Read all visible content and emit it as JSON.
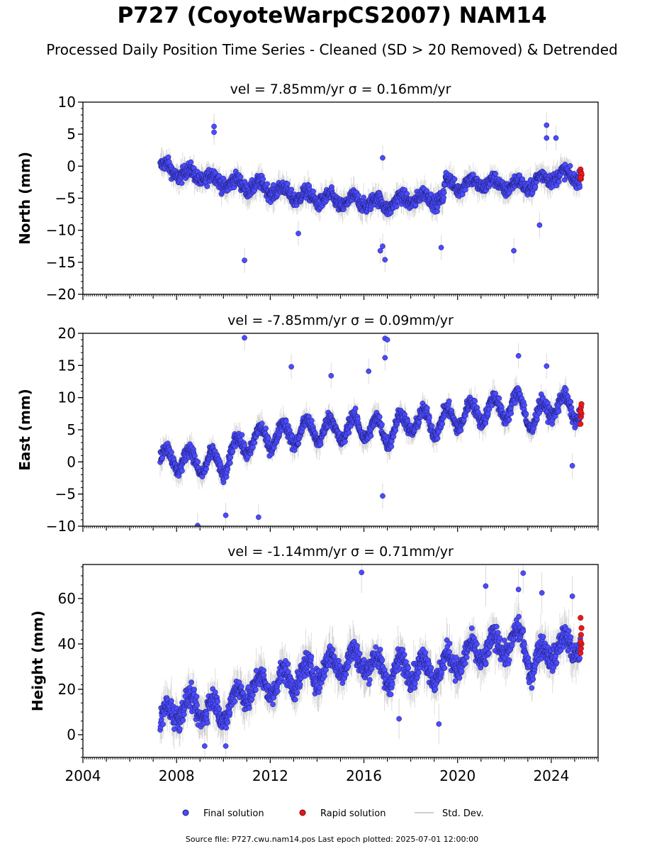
{
  "title": "P727 (CoyoteWarpCS2007) NAM14",
  "subtitle": "Processed Daily Position Time Series - Cleaned (SD > 20 Removed) & Detrended",
  "source_line": "Source file: P727.cwu.nam14.pos  Last epoch plotted: 2025-07-01 12:00:00",
  "colors": {
    "final": "#4b4bff",
    "final_edge": "#1a1a66",
    "rapid": "#e41a1c",
    "rapid_edge": "#7a0000",
    "std": "#bfbfbf"
  },
  "legend": {
    "final": "Final solution",
    "rapid": "Rapid solution",
    "std": "Std. Dev."
  },
  "chart_data": [
    {
      "type": "scatter",
      "title": "vel = 7.85mm/yr   σ = 0.16mm/yr",
      "ylabel": "North (mm)",
      "xlim": [
        2004,
        2026
      ],
      "ylim": [
        -20,
        10
      ],
      "yticks": [
        -20,
        -15,
        -10,
        -5,
        0,
        5,
        10
      ],
      "xticks": [],
      "grid": false,
      "trend": [
        [
          2007.3,
          0
        ],
        [
          2008,
          -1
        ],
        [
          2009,
          -1.5
        ],
        [
          2010,
          -2.5
        ],
        [
          2011,
          -3
        ],
        [
          2012,
          -3.5
        ],
        [
          2013,
          -4.5
        ],
        [
          2014,
          -5
        ],
        [
          2015,
          -5.5
        ],
        [
          2016,
          -5.5
        ],
        [
          2017,
          -6
        ],
        [
          2018,
          -5
        ],
        [
          2019,
          -5
        ],
        [
          2019.4,
          -5
        ],
        [
          2019.5,
          -2.5
        ],
        [
          2020,
          -3
        ],
        [
          2021,
          -2.5
        ],
        [
          2022,
          -3
        ],
        [
          2023,
          -3
        ],
        [
          2024,
          -1.5
        ],
        [
          2025.3,
          -1.5
        ]
      ],
      "outliers": [
        [
          2009.6,
          6.2
        ],
        [
          2009.6,
          5.3
        ],
        [
          2010.9,
          -14.7
        ],
        [
          2016.8,
          1.3
        ],
        [
          2016.8,
          -12.5
        ],
        [
          2016.9,
          -14.6
        ],
        [
          2016.7,
          -13.2
        ],
        [
          2019.3,
          -12.7
        ],
        [
          2022.4,
          -13.2
        ],
        [
          2023.8,
          6.4
        ],
        [
          2023.8,
          4.4
        ],
        [
          2024.2,
          4.4
        ],
        [
          2023.5,
          -9.2
        ],
        [
          2013.2,
          -10.5
        ]
      ],
      "rapid": [
        -0.5,
        -1.0,
        -1.4,
        -1.7,
        -2.0,
        -1.2,
        -1.8
      ]
    },
    {
      "type": "scatter",
      "title": "vel = -7.85mm/yr   σ = 0.09mm/yr",
      "ylabel": "East (mm)",
      "xlim": [
        2004,
        2026
      ],
      "ylim": [
        -10,
        20
      ],
      "yticks": [
        -10,
        -5,
        0,
        5,
        10,
        15,
        20
      ],
      "xticks": [],
      "grid": false,
      "trend": [
        [
          2007.3,
          0.5
        ],
        [
          2008,
          0.5
        ],
        [
          2009,
          0
        ],
        [
          2010,
          -0.5
        ],
        [
          2010.5,
          2
        ],
        [
          2011,
          3
        ],
        [
          2012,
          4
        ],
        [
          2013,
          4.5
        ],
        [
          2014,
          5
        ],
        [
          2015,
          5
        ],
        [
          2016,
          5.5
        ],
        [
          2017,
          4.5
        ],
        [
          2018,
          6.5
        ],
        [
          2019,
          6
        ],
        [
          2020,
          7
        ],
        [
          2021,
          8
        ],
        [
          2022,
          8.5
        ],
        [
          2022.8,
          9
        ],
        [
          2023.2,
          6
        ],
        [
          2024,
          9
        ],
        [
          2025.3,
          8
        ]
      ],
      "outliers": [
        [
          2010.9,
          19.3
        ],
        [
          2016.9,
          19.2
        ],
        [
          2017.0,
          19.0
        ],
        [
          2016.9,
          16.2
        ],
        [
          2022.6,
          16.5
        ],
        [
          2012.9,
          14.8
        ],
        [
          2014.6,
          13.4
        ],
        [
          2016.2,
          14.1
        ],
        [
          2023.8,
          14.9
        ],
        [
          2008.9,
          -9.9
        ],
        [
          2011.5,
          -8.6
        ],
        [
          2010.1,
          -8.3
        ],
        [
          2016.8,
          -5.3
        ],
        [
          2024.9,
          -0.6
        ]
      ],
      "rapid": [
        5.9,
        7.0,
        7.5,
        8.0,
        8.5,
        9.0,
        7.8
      ]
    },
    {
      "type": "scatter",
      "title": "vel = -1.14mm/yr   σ = 0.71mm/yr",
      "ylabel": "Height (mm)",
      "xlim": [
        2004,
        2026
      ],
      "ylim": [
        -10,
        75
      ],
      "yticks": [
        0,
        20,
        40,
        60
      ],
      "xticks": [
        2004,
        2008,
        2012,
        2016,
        2020,
        2024
      ],
      "grid": false,
      "trend": [
        [
          2007.3,
          5
        ],
        [
          2008,
          12
        ],
        [
          2009,
          12
        ],
        [
          2010,
          10
        ],
        [
          2011,
          20
        ],
        [
          2012,
          22
        ],
        [
          2013,
          25
        ],
        [
          2014,
          28
        ],
        [
          2015,
          32
        ],
        [
          2016,
          33
        ],
        [
          2017,
          27
        ],
        [
          2018,
          30
        ],
        [
          2019,
          28
        ],
        [
          2020,
          33
        ],
        [
          2021,
          37
        ],
        [
          2022,
          40
        ],
        [
          2022.8,
          42
        ],
        [
          2023.1,
          30
        ],
        [
          2024,
          38
        ],
        [
          2025.3,
          40
        ]
      ],
      "outliers": [
        [
          2015.9,
          71.5
        ],
        [
          2022.8,
          71.2
        ],
        [
          2021.2,
          65.5
        ],
        [
          2023.6,
          62.5
        ],
        [
          2024.9,
          61.0
        ],
        [
          2022.6,
          64.0
        ],
        [
          2019.2,
          4.7
        ],
        [
          2010.1,
          -5
        ],
        [
          2009.2,
          -5
        ],
        [
          2017.5,
          7
        ]
      ],
      "rapid": [
        36,
        38,
        40,
        41,
        44,
        47,
        51.5
      ]
    }
  ]
}
